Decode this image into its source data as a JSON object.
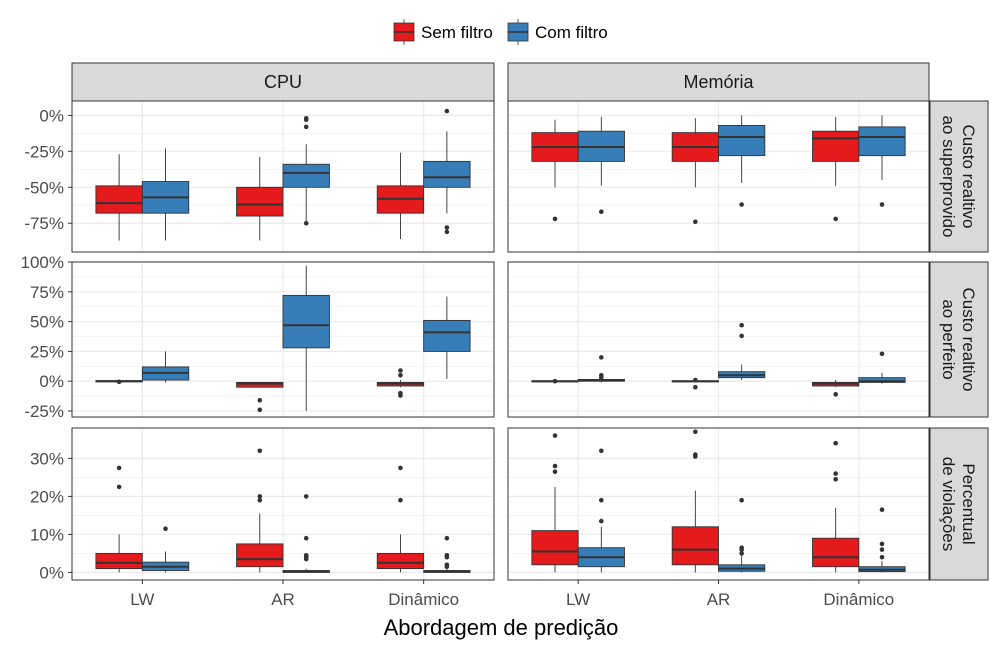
{
  "chart_data": {
    "type": "box",
    "legend": {
      "placement": "top",
      "entries": [
        {
          "name": "Sem filtro",
          "color": "#E41A1C"
        },
        {
          "name": "Com filtro",
          "color": "#377EB8"
        }
      ]
    },
    "xlabel": "Abordagem de predição",
    "categories": [
      "LW",
      "AR",
      "Dinâmico"
    ],
    "columns": [
      "CPU",
      "Memória"
    ],
    "rows": [
      {
        "label": "Custo realtivo\nao superprovido",
        "label_lines": [
          "Custo realtivo",
          "ao superprovido"
        ],
        "ylim": [
          -95,
          10
        ],
        "ticks": [
          0,
          -25,
          -50,
          -75
        ],
        "tick_labels": [
          "0%",
          "-25%",
          "-50%",
          "-75%"
        ]
      },
      {
        "label": "Custo realtivo\nao perfeito",
        "label_lines": [
          "Custo realtivo",
          "ao perfeito"
        ],
        "ylim": [
          -30,
          100
        ],
        "ticks": [
          100,
          75,
          50,
          25,
          0,
          -25
        ],
        "tick_labels": [
          "100%",
          "75%",
          "50%",
          "25%",
          "0%",
          "-25%"
        ]
      },
      {
        "label": "Percentual\nde violações",
        "label_lines": [
          "Percentual",
          "de violações"
        ],
        "ylim": [
          -2,
          38
        ],
        "ticks": [
          30,
          20,
          10,
          0
        ],
        "tick_labels": [
          "30%",
          "20%",
          "10%",
          "0%"
        ]
      }
    ],
    "panels": [
      {
        "row": 0,
        "col": "CPU",
        "series": [
          {
            "name": "Sem filtro",
            "boxes": [
              {
                "category": "LW",
                "whisker_low": -87,
                "q1": -68,
                "median": -61,
                "q3": -49,
                "whisker_high": -27,
                "outliers": []
              },
              {
                "category": "AR",
                "whisker_low": -87,
                "q1": -70,
                "median": -62,
                "q3": -50,
                "whisker_high": -29,
                "outliers": []
              },
              {
                "category": "Dinâmico",
                "whisker_low": -86,
                "q1": -68,
                "median": -58,
                "q3": -49,
                "whisker_high": -26,
                "outliers": []
              }
            ]
          },
          {
            "name": "Com filtro",
            "boxes": [
              {
                "category": "LW",
                "whisker_low": -87,
                "q1": -68,
                "median": -57,
                "q3": -46,
                "whisker_high": -23,
                "outliers": []
              },
              {
                "category": "AR",
                "whisker_low": -74,
                "q1": -50,
                "median": -40,
                "q3": -34,
                "whisker_high": -20,
                "outliers": [
                  -2,
                  -3,
                  -8,
                  -75
                ]
              },
              {
                "category": "Dinâmico",
                "whisker_low": -68,
                "q1": -50,
                "median": -43,
                "q3": -32,
                "whisker_high": -11,
                "outliers": [
                  3,
                  -78,
                  -81
                ]
              }
            ]
          }
        ]
      },
      {
        "row": 0,
        "col": "Memória",
        "series": [
          {
            "name": "Sem filtro",
            "boxes": [
              {
                "category": "LW",
                "whisker_low": -50,
                "q1": -32,
                "median": -22,
                "q3": -12,
                "whisker_high": -3,
                "outliers": [
                  -72
                ]
              },
              {
                "category": "AR",
                "whisker_low": -50,
                "q1": -32,
                "median": -22,
                "q3": -12,
                "whisker_high": -2,
                "outliers": [
                  -74
                ]
              },
              {
                "category": "Dinâmico",
                "whisker_low": -49,
                "q1": -32,
                "median": -16,
                "q3": -11,
                "whisker_high": -1,
                "outliers": [
                  -72
                ]
              }
            ]
          },
          {
            "name": "Com filtro",
            "boxes": [
              {
                "category": "LW",
                "whisker_low": -49,
                "q1": -32,
                "median": -22,
                "q3": -11,
                "whisker_high": -1,
                "outliers": [
                  -67
                ]
              },
              {
                "category": "AR",
                "whisker_low": -47,
                "q1": -28,
                "median": -15,
                "q3": -7,
                "whisker_high": 0,
                "outliers": [
                  -62
                ]
              },
              {
                "category": "Dinâmico",
                "whisker_low": -45,
                "q1": -28,
                "median": -15,
                "q3": -8,
                "whisker_high": 0,
                "outliers": [
                  -62
                ]
              }
            ]
          }
        ]
      },
      {
        "row": 1,
        "col": "CPU",
        "series": [
          {
            "name": "Sem filtro",
            "boxes": [
              {
                "category": "LW",
                "whisker_low": -1,
                "q1": -0.5,
                "median": 0,
                "q3": 0.5,
                "whisker_high": 1,
                "outliers": [
                  -0.5
                ]
              },
              {
                "category": "AR",
                "whisker_low": -5,
                "q1": -5,
                "median": -2,
                "q3": -1,
                "whisker_high": -1,
                "outliers": [
                  -16,
                  -24
                ]
              },
              {
                "category": "Dinâmico",
                "whisker_low": -5,
                "q1": -4,
                "median": -2,
                "q3": -1,
                "whisker_high": 1,
                "outliers": [
                  5,
                  9,
                  -10,
                  -12
                ]
              }
            ]
          },
          {
            "name": "Com filtro",
            "boxes": [
              {
                "category": "LW",
                "whisker_low": -1,
                "q1": 1,
                "median": 7,
                "q3": 12,
                "whisker_high": 25,
                "outliers": []
              },
              {
                "category": "AR",
                "whisker_low": -25,
                "q1": 28,
                "median": 47,
                "q3": 72,
                "whisker_high": 97,
                "outliers": []
              },
              {
                "category": "Dinâmico",
                "whisker_low": 2,
                "q1": 25,
                "median": 41,
                "q3": 51,
                "whisker_high": 71,
                "outliers": []
              }
            ]
          }
        ]
      },
      {
        "row": 1,
        "col": "Memória",
        "series": [
          {
            "name": "Sem filtro",
            "boxes": [
              {
                "category": "LW",
                "whisker_low": -0.5,
                "q1": -0.3,
                "median": 0,
                "q3": 0.3,
                "whisker_high": 0.5,
                "outliers": [
                  0
                ]
              },
              {
                "category": "AR",
                "whisker_low": -0.5,
                "q1": -0.3,
                "median": 0,
                "q3": 0.3,
                "whisker_high": 0.5,
                "outliers": [
                  1,
                  -5
                ]
              },
              {
                "category": "Dinâmico",
                "whisker_low": -5,
                "q1": -4,
                "median": -2,
                "q3": -1,
                "whisker_high": 1,
                "outliers": [
                  -11
                ]
              }
            ]
          },
          {
            "name": "Com filtro",
            "boxes": [
              {
                "category": "LW",
                "whisker_low": -1,
                "q1": 0,
                "median": 1,
                "q3": 1.5,
                "whisker_high": 2,
                "outliers": [
                  20,
                  5,
                  3
                ]
              },
              {
                "category": "AR",
                "whisker_low": 1,
                "q1": 3,
                "median": 5,
                "q3": 8,
                "whisker_high": 14,
                "outliers": [
                  47,
                  38
                ]
              },
              {
                "category": "Dinâmico",
                "whisker_low": -2,
                "q1": -1,
                "median": 0,
                "q3": 3,
                "whisker_high": 7,
                "outliers": [
                  23
                ]
              }
            ]
          }
        ]
      },
      {
        "row": 2,
        "col": "CPU",
        "series": [
          {
            "name": "Sem filtro",
            "boxes": [
              {
                "category": "LW",
                "whisker_low": 0,
                "q1": 1,
                "median": 2.5,
                "q3": 5,
                "whisker_high": 10,
                "outliers": [
                  27.5,
                  22.5
                ]
              },
              {
                "category": "AR",
                "whisker_low": 0,
                "q1": 1.5,
                "median": 3.5,
                "q3": 7.5,
                "whisker_high": 15.5,
                "outliers": [
                  32,
                  20,
                  19
                ]
              },
              {
                "category": "Dinâmico",
                "whisker_low": 0,
                "q1": 1,
                "median": 2.5,
                "q3": 5,
                "whisker_high": 10,
                "outliers": [
                  27.5,
                  19
                ]
              }
            ]
          },
          {
            "name": "Com filtro",
            "boxes": [
              {
                "category": "LW",
                "whisker_low": 0,
                "q1": 0.5,
                "median": 1.5,
                "q3": 2.7,
                "whisker_high": 5.5,
                "outliers": [
                  11.5
                ]
              },
              {
                "category": "AR",
                "whisker_low": 0,
                "q1": 0,
                "median": 0.2,
                "q3": 0.5,
                "whisker_high": 1,
                "outliers": [
                  20,
                  9,
                  4.5,
                  4,
                  3.5
                ]
              },
              {
                "category": "Dinâmico",
                "whisker_low": 0,
                "q1": 0,
                "median": 0.2,
                "q3": 0.5,
                "whisker_high": 1,
                "outliers": [
                  9,
                  4.5,
                  4,
                  2,
                  1.5
                ]
              }
            ]
          }
        ]
      },
      {
        "row": 2,
        "col": "Memória",
        "series": [
          {
            "name": "Sem filtro",
            "boxes": [
              {
                "category": "LW",
                "whisker_low": 0,
                "q1": 2,
                "median": 5.5,
                "q3": 11,
                "whisker_high": 22.5,
                "outliers": [
                  36,
                  28,
                  26.5
                ]
              },
              {
                "category": "AR",
                "whisker_low": 0,
                "q1": 2,
                "median": 6,
                "q3": 12,
                "whisker_high": 21.5,
                "outliers": [
                  37,
                  31,
                  30.5
                ]
              },
              {
                "category": "Dinâmico",
                "whisker_low": 0,
                "q1": 1.5,
                "median": 4,
                "q3": 9,
                "whisker_high": 17,
                "outliers": [
                  34,
                  26,
                  24.5
                ]
              }
            ]
          },
          {
            "name": "Com filtro",
            "boxes": [
              {
                "category": "LW",
                "whisker_low": 0,
                "q1": 1.5,
                "median": 4,
                "q3": 6.5,
                "whisker_high": 12,
                "outliers": [
                  32,
                  19,
                  13.5
                ]
              },
              {
                "category": "AR",
                "whisker_low": 0,
                "q1": 0.3,
                "median": 1,
                "q3": 2,
                "whisker_high": 4.5,
                "outliers": [
                  19,
                  6.5,
                  6,
                  5
                ]
              },
              {
                "category": "Dinâmico",
                "whisker_low": 0,
                "q1": 0.2,
                "median": 0.7,
                "q3": 1.5,
                "whisker_high": 3,
                "outliers": [
                  16.5,
                  7.5,
                  6,
                  4
                ]
              }
            ]
          }
        ]
      }
    ]
  }
}
